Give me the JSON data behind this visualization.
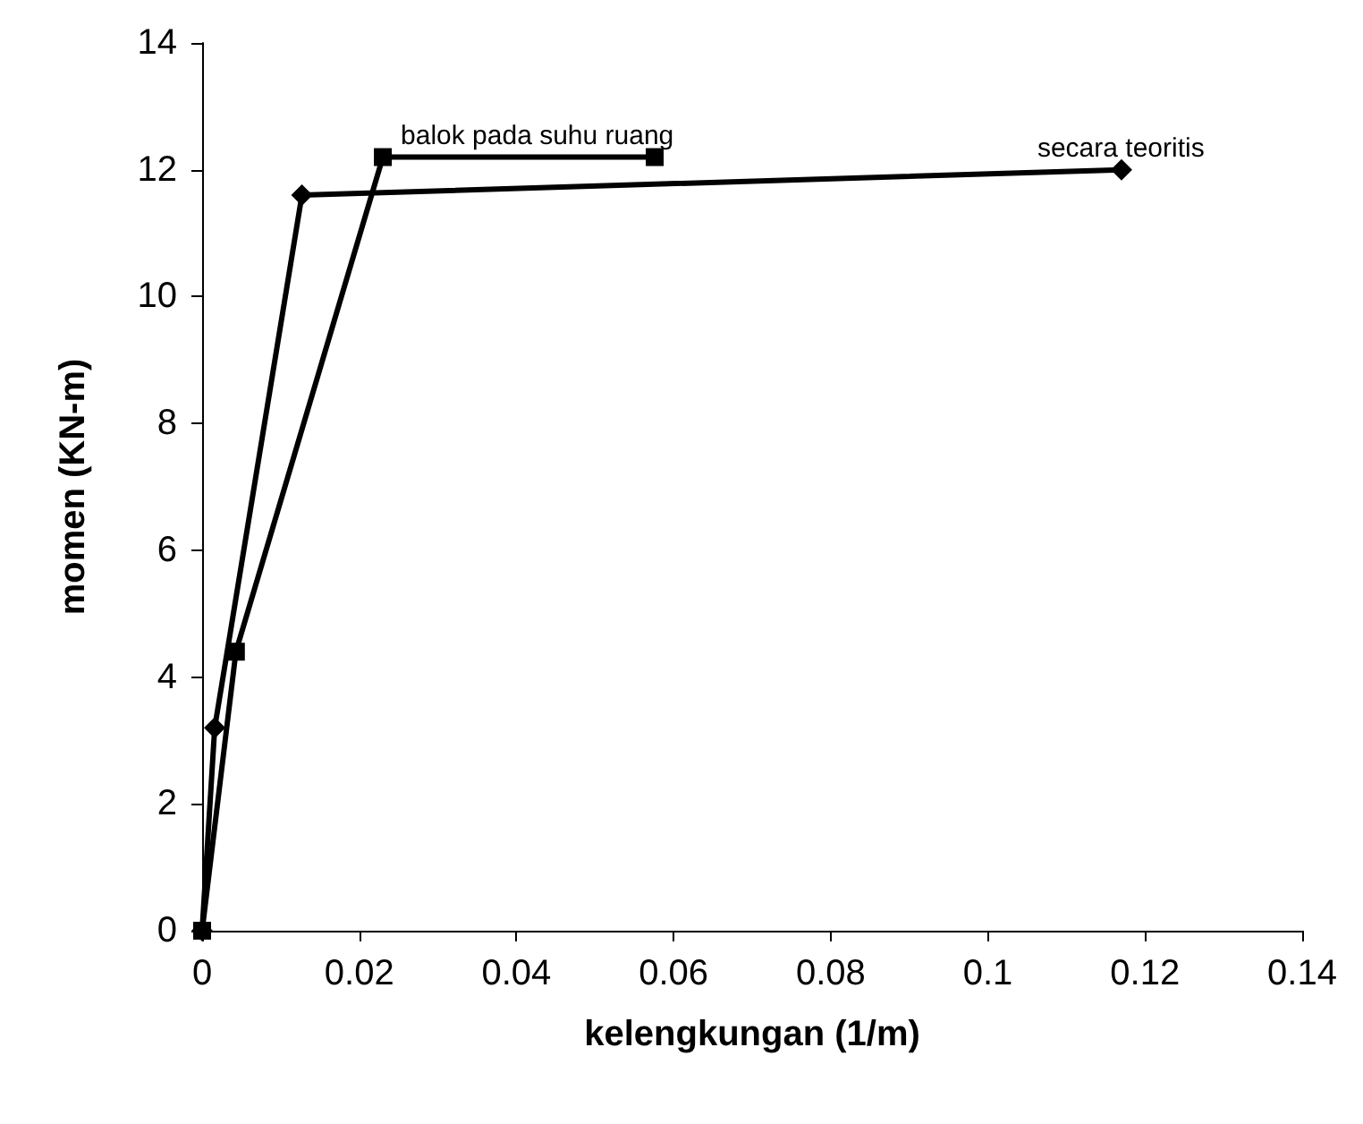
{
  "chart_data": {
    "type": "line",
    "xlabel": "kelengkungan (1/m)",
    "ylabel": "momen (KN-m)",
    "xlim": [
      0,
      0.14
    ],
    "xticks": [
      0,
      0.02,
      0.04,
      0.06,
      0.08,
      0.1,
      0.12,
      0.14
    ],
    "ylim": [
      0,
      14
    ],
    "yticks": [
      0,
      2,
      4,
      6,
      8,
      10,
      12,
      14
    ],
    "grid": false,
    "legend": false,
    "series": [
      {
        "name": "secara teoritis",
        "color": "#000000",
        "marker": "diamond",
        "x": [
          0,
          0.0016,
          0.0127,
          0.117
        ],
        "values": [
          0,
          3.2,
          11.6,
          12.0
        ]
      },
      {
        "name": "balok pada suhu ruang",
        "color": "#000000",
        "marker": "square",
        "x": [
          0,
          0.0043,
          0.023,
          0.0576
        ],
        "values": [
          0,
          4.4,
          12.2,
          12.2
        ]
      }
    ]
  }
}
